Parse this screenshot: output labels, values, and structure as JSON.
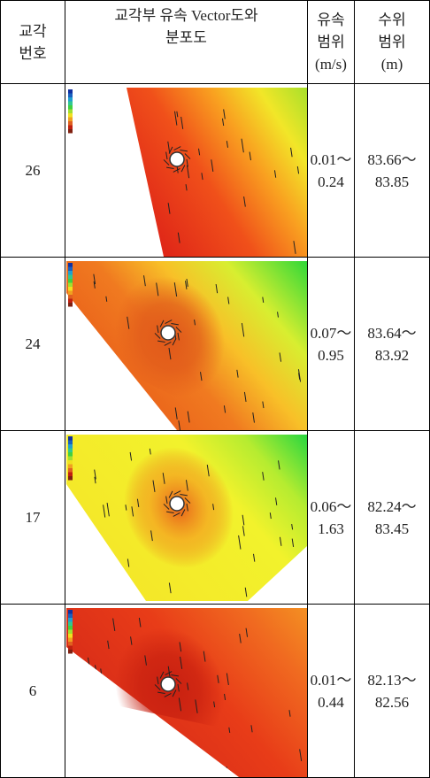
{
  "header": {
    "pier_no": [
      "교각",
      "번호"
    ],
    "vector_map": [
      "교각부 유속 Vector도와",
      "분포도"
    ],
    "velocity_range": [
      "유속",
      "범위",
      "(m/s)"
    ],
    "water_level_range": [
      "수위",
      "범위",
      "(m)"
    ]
  },
  "rows": [
    {
      "pier_no": "26",
      "velocity_range": [
        "0.01～",
        "0.24"
      ],
      "water_level_range": [
        "83.66～",
        "83.85"
      ]
    },
    {
      "pier_no": "24",
      "velocity_range": [
        "0.07～",
        "0.95"
      ],
      "water_level_range": [
        "83.64～",
        "83.92"
      ]
    },
    {
      "pier_no": "17",
      "velocity_range": [
        "0.06～",
        "1.63"
      ],
      "water_level_range": [
        "82.24～",
        "83.45"
      ]
    },
    {
      "pier_no": "6",
      "velocity_range": [
        "0.01～",
        "0.44"
      ],
      "water_level_range": [
        "82.13～",
        "82.56"
      ]
    }
  ]
}
